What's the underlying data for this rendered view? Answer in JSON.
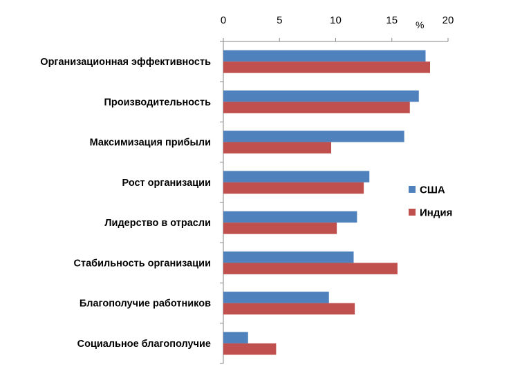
{
  "chart_data": {
    "type": "bar",
    "orientation": "horizontal",
    "unit_label": "%",
    "xlim": [
      0,
      20
    ],
    "ticks": [
      0,
      5,
      10,
      15,
      20
    ],
    "grid": false,
    "legend_position": "right",
    "categories": [
      "Организационная эффективность",
      "Производительность",
      "Максимизация прибыли",
      "Рост организации",
      "Лидерство в отрасли",
      "Стабильность организации",
      "Благополучие работников",
      "Социальное благополучие"
    ],
    "series": [
      {
        "name": "США",
        "color": "#4F81BD",
        "values": [
          18.0,
          17.4,
          16.1,
          13.0,
          11.9,
          11.6,
          9.4,
          2.2
        ]
      },
      {
        "name": "Индия",
        "color": "#C0504D",
        "values": [
          18.4,
          16.6,
          9.6,
          12.5,
          10.1,
          15.5,
          11.7,
          4.7
        ]
      }
    ]
  }
}
